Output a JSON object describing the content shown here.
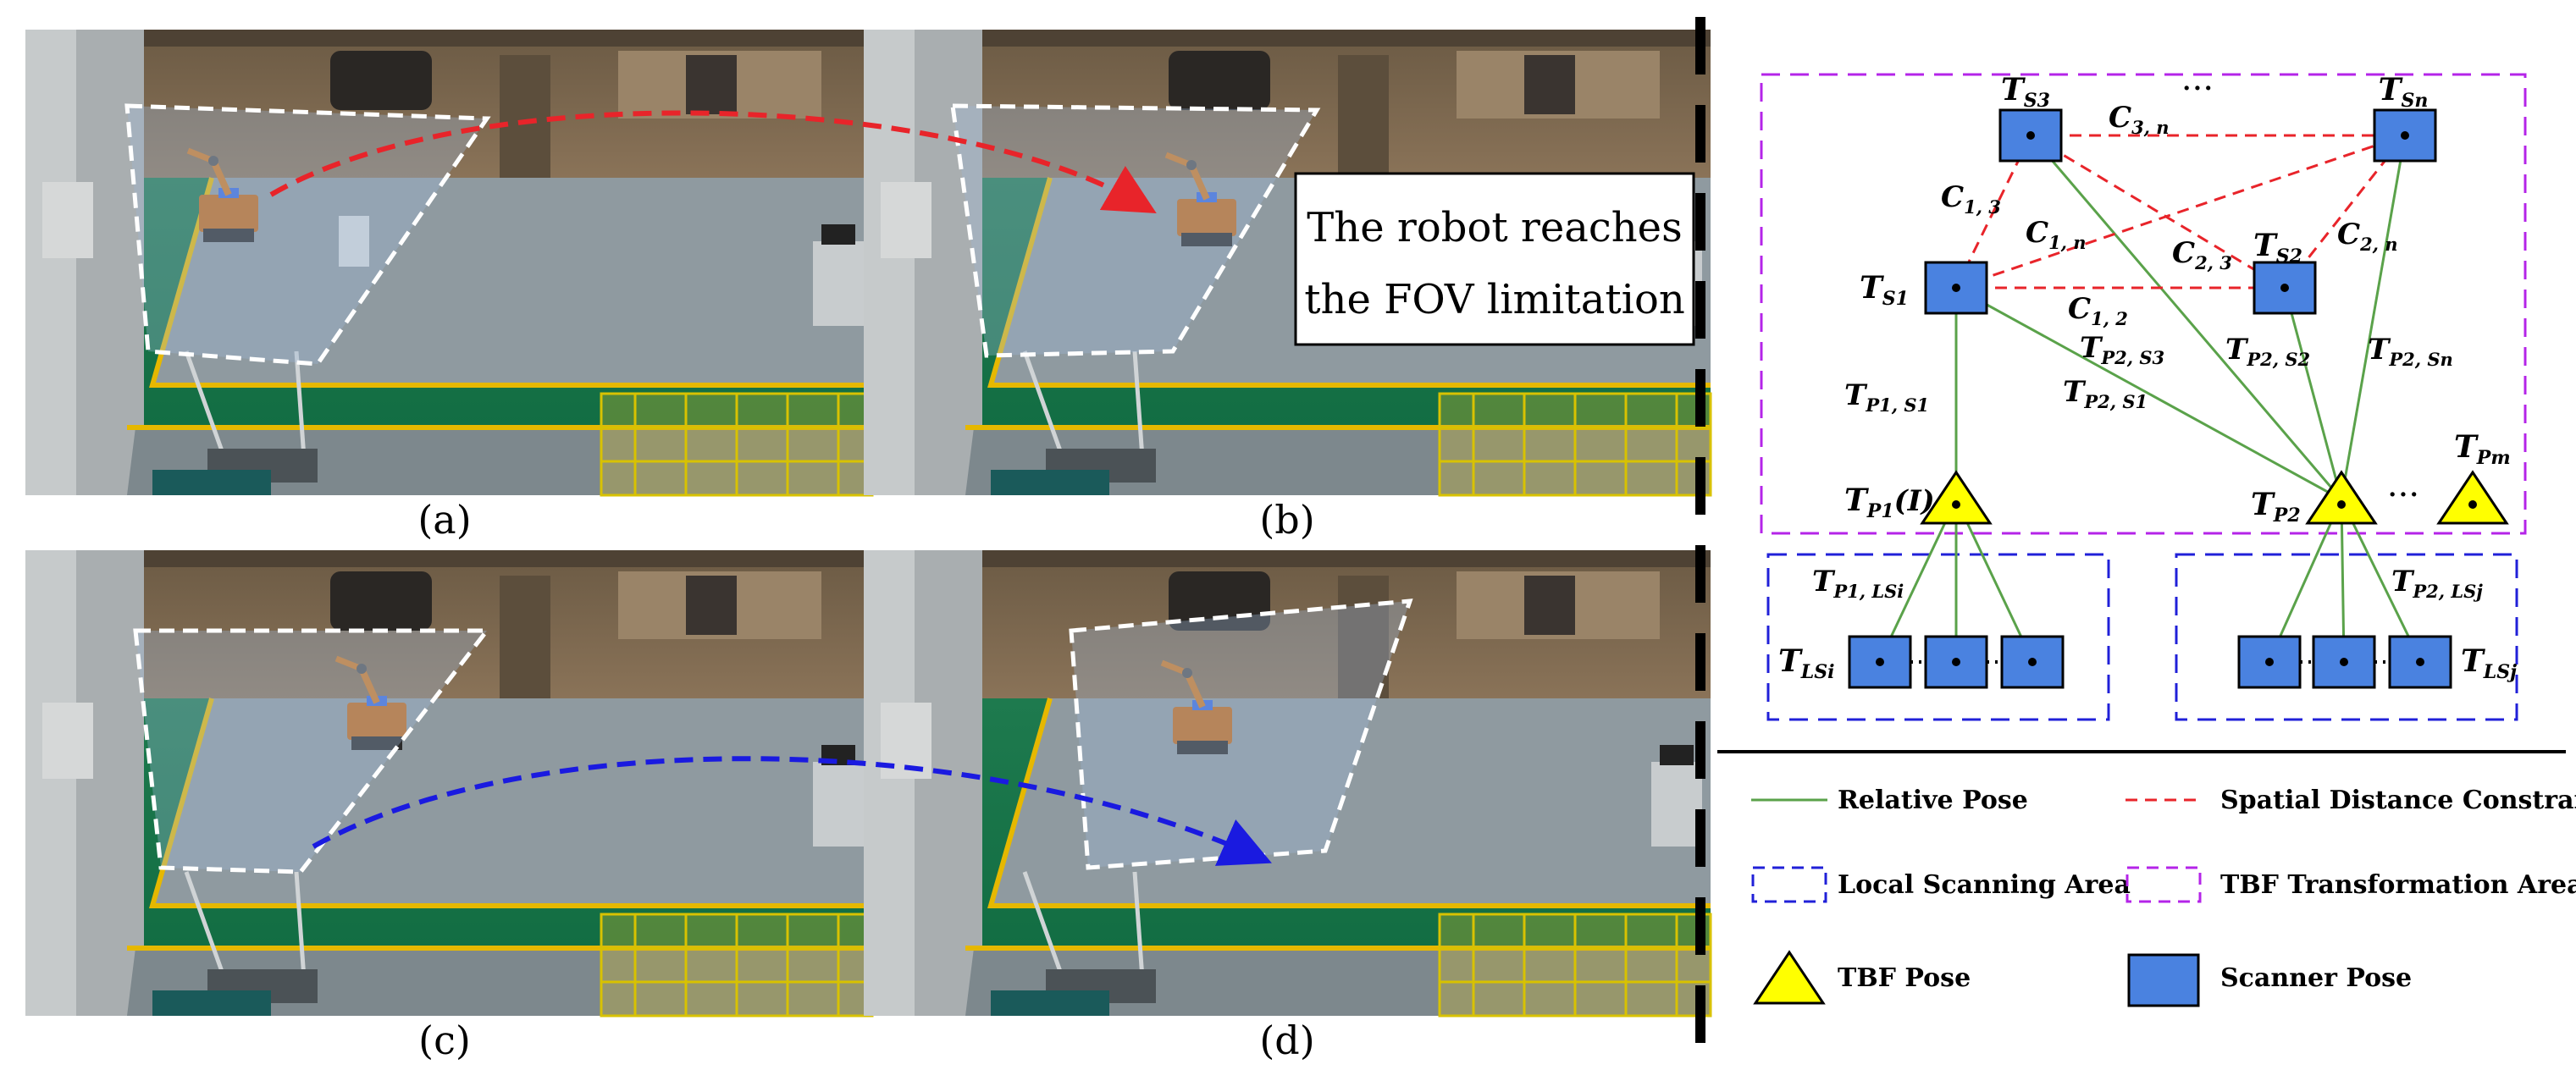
{
  "panels": {
    "a": {
      "caption": "(a)"
    },
    "b": {
      "caption": "(b)",
      "annotation_line1": "The robot reaches",
      "annotation_line2": "the FOV limitation"
    },
    "c": {
      "caption": "(c)"
    },
    "d": {
      "caption": "(d)"
    }
  },
  "graph": {
    "nodes": {
      "S1": {
        "base": "T",
        "sub": "S1"
      },
      "S2": {
        "base": "T",
        "sub": "S2"
      },
      "S3": {
        "base": "T",
        "sub": "S3"
      },
      "Sn": {
        "base": "T",
        "sub": "Sn"
      },
      "P1": {
        "base": "T",
        "sub": "P1",
        "suffix": "(I)"
      },
      "P2": {
        "base": "T",
        "sub": "P2"
      },
      "Pm": {
        "base": "T",
        "sub": "Pm"
      },
      "LSi": {
        "base": "T",
        "sub": "LSi"
      },
      "LSj": {
        "base": "T",
        "sub": "LSj"
      }
    },
    "edge_labels": {
      "C13": {
        "base": "C",
        "sub": "1, 3"
      },
      "C1n": {
        "base": "C",
        "sub": "1, n"
      },
      "C12": {
        "base": "C",
        "sub": "1, 2"
      },
      "C23": {
        "base": "C",
        "sub": "2, 3"
      },
      "C2n": {
        "base": "C",
        "sub": "2, n"
      },
      "C3n": {
        "base": "C",
        "sub": "3, n"
      },
      "TP1S1": {
        "base": "T",
        "sub": "P1, S1"
      },
      "TP2S1": {
        "base": "T",
        "sub": "P2, S1"
      },
      "TP2S2": {
        "base": "T",
        "sub": "P2, S2"
      },
      "TP2S3": {
        "base": "T",
        "sub": "P2, S3"
      },
      "TP2Sn": {
        "base": "T",
        "sub": "P2, Sn"
      },
      "TP1LSi": {
        "base": "T",
        "sub": "P1, LSi"
      },
      "TP2LSj": {
        "base": "T",
        "sub": "P2, LSj"
      }
    },
    "ellipsis": "···",
    "legend": {
      "relative_pose": "Relative Pose",
      "spatial_constraint": "Spatial Distance Constraint",
      "local_scanning": "Local Scanning Area",
      "tbf_transformation": "TBF Transformation Area",
      "tbf_pose": "TBF Pose",
      "scanner_pose": "Scanner Pose"
    }
  },
  "colors": {
    "relative_pose": "#5aa24a",
    "spatial_constraint": "#e8242a",
    "local_area": "#2020d8",
    "tbf_area": "#b424e8",
    "tbf_pose_fill": "#ffff00",
    "scanner_fill": "#4a82e0",
    "arrow_red": "#e8242a",
    "arrow_blue": "#1a1ae0"
  }
}
